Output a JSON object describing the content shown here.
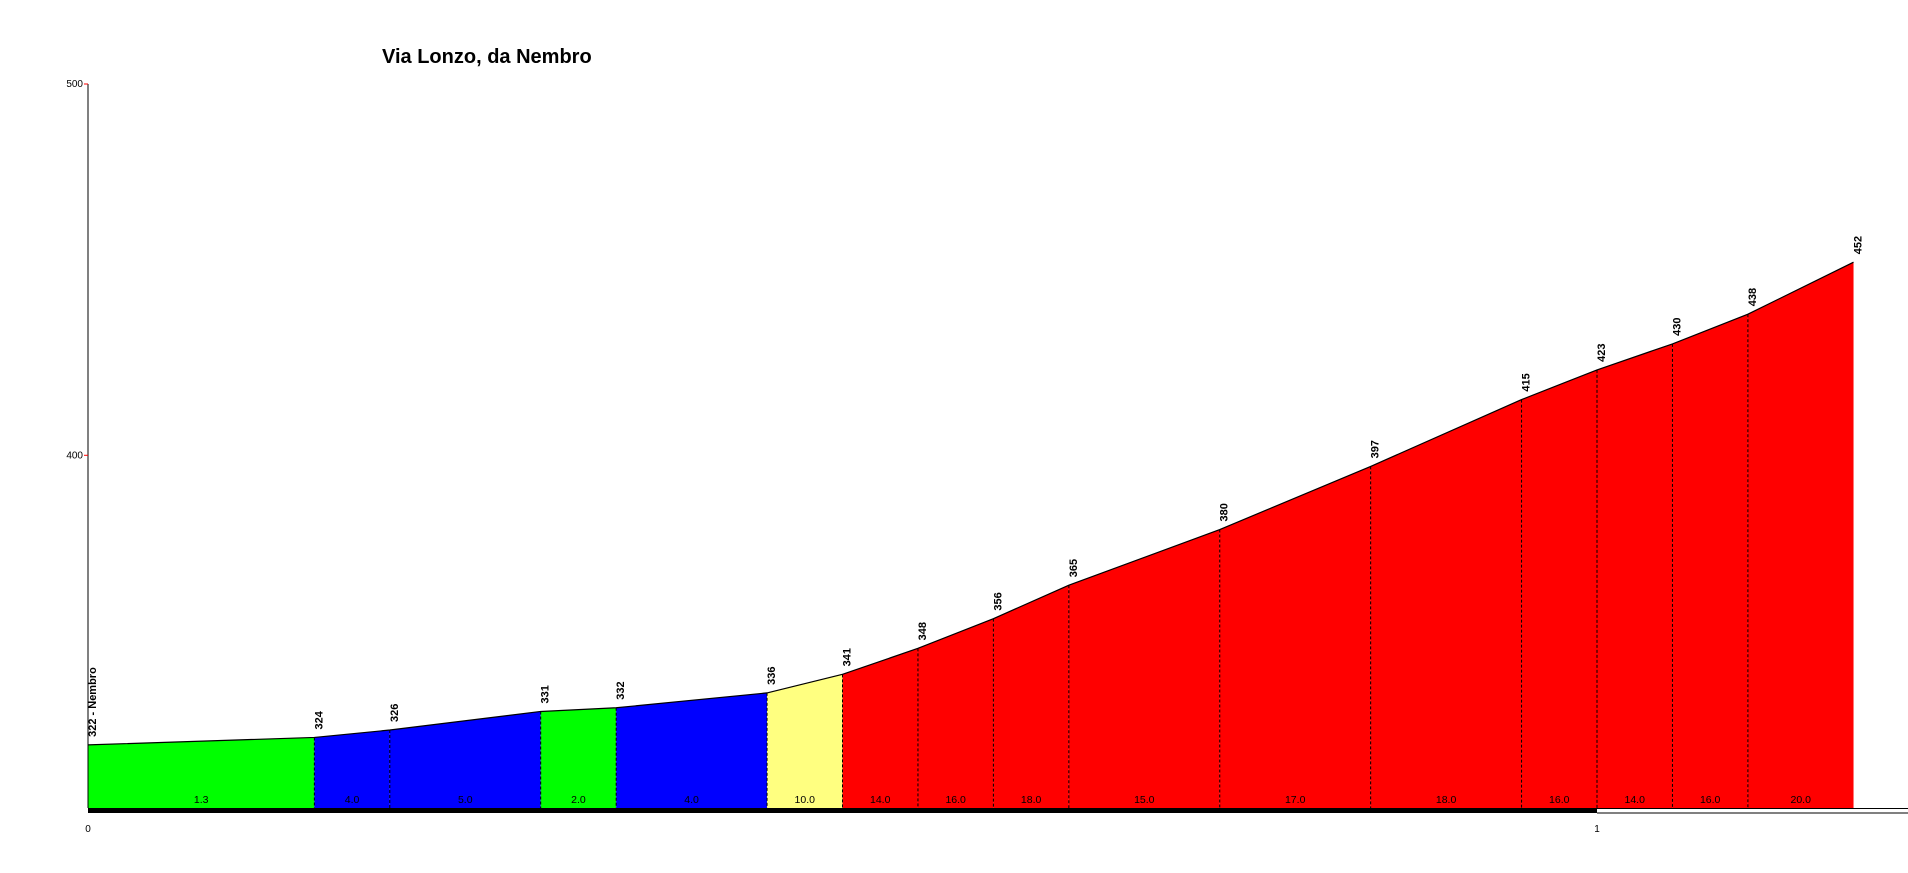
{
  "chart_data": {
    "type": "area",
    "title": "Via Lonzo, da Nembro",
    "xlabel": "",
    "ylabel": "",
    "xlim": [
      0,
      1.2
    ],
    "ylim": [
      305,
      500
    ],
    "y_ticks": [
      400,
      500
    ],
    "x_ticks": [
      0,
      1
    ],
    "x_tick_labels": [
      "0",
      "1"
    ],
    "y_tick_labels": [
      "400",
      "500"
    ],
    "points": [
      {
        "x": 0.0,
        "y": 322,
        "label": "322 - Nembro"
      },
      {
        "x": 0.15,
        "y": 324,
        "label": "324"
      },
      {
        "x": 0.2,
        "y": 326,
        "label": "326"
      },
      {
        "x": 0.3,
        "y": 331,
        "label": "331"
      },
      {
        "x": 0.35,
        "y": 332,
        "label": "332"
      },
      {
        "x": 0.45,
        "y": 336,
        "label": "336"
      },
      {
        "x": 0.5,
        "y": 341,
        "label": "341"
      },
      {
        "x": 0.55,
        "y": 348,
        "label": "348"
      },
      {
        "x": 0.6,
        "y": 356,
        "label": "356"
      },
      {
        "x": 0.65,
        "y": 365,
        "label": "365"
      },
      {
        "x": 0.75,
        "y": 380,
        "label": "380"
      },
      {
        "x": 0.85,
        "y": 397,
        "label": "397"
      },
      {
        "x": 0.95,
        "y": 415,
        "label": "415"
      },
      {
        "x": 1.0,
        "y": 423,
        "label": "423"
      },
      {
        "x": 1.05,
        "y": 430,
        "label": "430"
      },
      {
        "x": 1.1,
        "y": 438,
        "label": "438"
      },
      {
        "x": 1.17,
        "y": 452,
        "label": "452"
      }
    ],
    "segments": [
      {
        "grade": "1.3",
        "color": "#00ff00"
      },
      {
        "grade": "4.0",
        "color": "#0000ff"
      },
      {
        "grade": "5.0",
        "color": "#0000ff"
      },
      {
        "grade": "2.0",
        "color": "#00ff00"
      },
      {
        "grade": "4.0",
        "color": "#0000ff"
      },
      {
        "grade": "10.0",
        "color": "#ffff80"
      },
      {
        "grade": "14.0",
        "color": "#ff0000"
      },
      {
        "grade": "16.0",
        "color": "#ff0000"
      },
      {
        "grade": "18.0",
        "color": "#ff0000"
      },
      {
        "grade": "15.0",
        "color": "#ff0000"
      },
      {
        "grade": "17.0",
        "color": "#ff0000"
      },
      {
        "grade": "18.0",
        "color": "#ff0000"
      },
      {
        "grade": "16.0",
        "color": "#ff0000"
      },
      {
        "grade": "14.0",
        "color": "#ff0000"
      },
      {
        "grade": "16.0",
        "color": "#ff0000"
      },
      {
        "grade": "20.0",
        "color": "#ff0000"
      }
    ],
    "colors": {
      "axis": "#000000",
      "tick_mark": "#ff0000",
      "profile_line": "#000000"
    }
  }
}
